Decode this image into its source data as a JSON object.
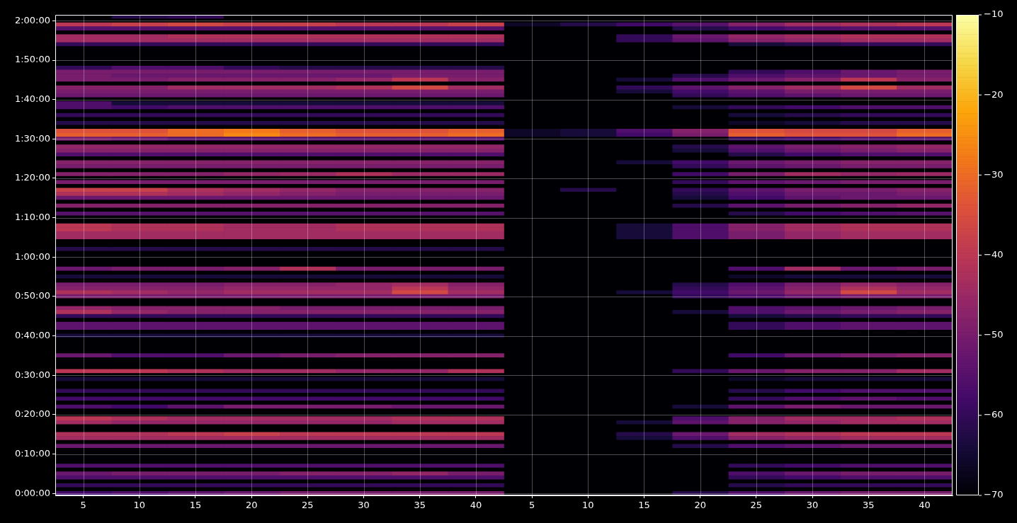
{
  "chart_data": {
    "type": "heatmap",
    "categories": [
      "5",
      "10",
      "15",
      "20",
      "25",
      "30",
      "35",
      "40",
      "5",
      "10",
      "15",
      "20",
      "25",
      "30",
      "35",
      "40"
    ],
    "clim": [
      -70,
      -10
    ],
    "grid": true,
    "cticks": [
      {
        "value": -70,
        "label": "−70"
      },
      {
        "value": -60,
        "label": "−60"
      },
      {
        "value": -50,
        "label": "−50"
      },
      {
        "value": -40,
        "label": "−40"
      },
      {
        "value": -30,
        "label": "−30"
      },
      {
        "value": -20,
        "label": "−20"
      },
      {
        "value": -10,
        "label": "−10"
      }
    ],
    "y_categories": [
      null,
      "2:00:00",
      null,
      null,
      null,
      null,
      null,
      null,
      null,
      null,
      null,
      "1:50:00",
      null,
      null,
      null,
      null,
      null,
      null,
      null,
      null,
      null,
      "1:40:00",
      null,
      null,
      null,
      null,
      null,
      null,
      null,
      null,
      null,
      "1:30:00",
      null,
      null,
      null,
      null,
      null,
      null,
      null,
      null,
      null,
      "1:20:00",
      null,
      null,
      null,
      null,
      null,
      null,
      null,
      null,
      null,
      "1:10:00",
      null,
      null,
      null,
      null,
      null,
      null,
      null,
      null,
      null,
      "1:00:00",
      null,
      null,
      null,
      null,
      null,
      null,
      null,
      null,
      null,
      "0:50:00",
      null,
      null,
      null,
      null,
      null,
      null,
      null,
      null,
      null,
      "0:40:00",
      null,
      null,
      null,
      null,
      null,
      null,
      null,
      null,
      null,
      "0:30:00",
      null,
      null,
      null,
      null,
      null,
      null,
      null,
      null,
      null,
      "0:20:00",
      null,
      null,
      null,
      null,
      null,
      null,
      null,
      null,
      null,
      "0:10:00",
      null,
      null,
      null,
      null,
      null,
      null,
      null,
      null,
      null,
      "0:00:00"
    ],
    "cells": [
      [
        -70,
        -62,
        -60,
        -70,
        -70,
        -70,
        -70,
        -70,
        -70,
        -70,
        -70,
        -70,
        -70,
        -70,
        -70,
        -70
      ],
      [
        -70,
        -70,
        -70,
        -70,
        -70,
        -70,
        -70,
        -70,
        -70,
        -70,
        -70,
        -70,
        -70,
        -70,
        -70,
        -70
      ],
      [
        -40,
        -38,
        -36,
        -38,
        -38,
        -40,
        -40,
        -38,
        -66,
        -62,
        -58,
        -55,
        -48,
        -44,
        -42,
        -40
      ],
      [
        -55,
        -55,
        -55,
        -55,
        -55,
        -55,
        -55,
        -55,
        -70,
        -70,
        -70,
        -62,
        -58,
        -56,
        -55,
        -55
      ],
      [
        -70,
        -70,
        -70,
        -70,
        -70,
        -70,
        -70,
        -70,
        -70,
        -70,
        -70,
        -70,
        -70,
        -70,
        -70,
        -70
      ],
      [
        -44,
        -44,
        -42,
        -42,
        -42,
        -42,
        -42,
        -42,
        -70,
        -70,
        -60,
        -52,
        -46,
        -44,
        -42,
        -42
      ],
      [
        -44,
        -44,
        -44,
        -44,
        -44,
        -44,
        -44,
        -44,
        -70,
        -70,
        -60,
        -54,
        -48,
        -46,
        -44,
        -44
      ],
      [
        -60,
        -60,
        -60,
        -60,
        -60,
        -60,
        -60,
        -60,
        -70,
        -70,
        -70,
        -70,
        -64,
        -62,
        -60,
        -60
      ],
      [
        -70,
        -70,
        -70,
        -70,
        -70,
        -70,
        -70,
        -70,
        -70,
        -70,
        -70,
        -70,
        -70,
        -70,
        -70,
        -70
      ],
      [
        -70,
        -70,
        -70,
        -70,
        -70,
        -70,
        -70,
        -70,
        -70,
        -70,
        -70,
        -70,
        -70,
        -70,
        -70,
        -70
      ],
      [
        -70,
        -70,
        -70,
        -70,
        -70,
        -70,
        -70,
        -70,
        -70,
        -70,
        -70,
        -70,
        -70,
        -70,
        -70,
        -70
      ],
      [
        -70,
        -70,
        -70,
        -70,
        -70,
        -70,
        -70,
        -70,
        -70,
        -70,
        -70,
        -70,
        -70,
        -70,
        -70,
        -70
      ],
      [
        -70,
        -70,
        -70,
        -70,
        -70,
        -70,
        -70,
        -70,
        -70,
        -70,
        -70,
        -70,
        -70,
        -70,
        -70,
        -70
      ],
      [
        -60,
        -56,
        -56,
        -60,
        -62,
        -62,
        -62,
        -62,
        -70,
        -70,
        -70,
        -70,
        -70,
        -70,
        -70,
        -70
      ],
      [
        -50,
        -50,
        -50,
        -50,
        -50,
        -50,
        -50,
        -50,
        -70,
        -70,
        -70,
        -70,
        -60,
        -56,
        -52,
        -50
      ],
      [
        -50,
        -52,
        -52,
        -52,
        -52,
        -52,
        -50,
        -50,
        -70,
        -70,
        -70,
        -62,
        -56,
        -54,
        -52,
        -50
      ],
      [
        -50,
        -50,
        -48,
        -48,
        -48,
        -46,
        -40,
        -48,
        -70,
        -70,
        -64,
        -56,
        -52,
        -48,
        -40,
        -48
      ],
      [
        -70,
        -70,
        -70,
        -70,
        -70,
        -70,
        -70,
        -70,
        -70,
        -70,
        -70,
        -70,
        -70,
        -70,
        -70,
        -70
      ],
      [
        -48,
        -48,
        -44,
        -44,
        -44,
        -42,
        -36,
        -44,
        -70,
        -70,
        -60,
        -54,
        -48,
        -44,
        -36,
        -44
      ],
      [
        -50,
        -50,
        -50,
        -50,
        -50,
        -50,
        -50,
        -50,
        -70,
        -70,
        -64,
        -58,
        -54,
        -50,
        -50,
        -50
      ],
      [
        -52,
        -52,
        -52,
        -52,
        -52,
        -52,
        -52,
        -52,
        -70,
        -70,
        -70,
        -60,
        -56,
        -54,
        -52,
        -52
      ],
      [
        -70,
        -70,
        -70,
        -70,
        -70,
        -70,
        -70,
        -70,
        -70,
        -70,
        -70,
        -70,
        -70,
        -70,
        -70,
        -70
      ],
      [
        -56,
        -64,
        -64,
        -64,
        -64,
        -64,
        -64,
        -64,
        -70,
        -70,
        -70,
        -70,
        -70,
        -70,
        -70,
        -70
      ],
      [
        -56,
        -58,
        -56,
        -56,
        -56,
        -56,
        -56,
        -56,
        -70,
        -70,
        -70,
        -64,
        -60,
        -58,
        -56,
        -56
      ],
      [
        -70,
        -70,
        -70,
        -70,
        -70,
        -70,
        -70,
        -70,
        -70,
        -70,
        -70,
        -70,
        -70,
        -70,
        -70,
        -70
      ],
      [
        -60,
        -60,
        -60,
        -60,
        -60,
        -60,
        -60,
        -60,
        -70,
        -70,
        -70,
        -70,
        -64,
        -62,
        -60,
        -60
      ],
      [
        -70,
        -70,
        -70,
        -70,
        -70,
        -70,
        -70,
        -70,
        -70,
        -70,
        -70,
        -70,
        -70,
        -70,
        -70,
        -70
      ],
      [
        -62,
        -62,
        -62,
        -62,
        -62,
        -62,
        -62,
        -62,
        -70,
        -70,
        -70,
        -70,
        -66,
        -64,
        -62,
        -62
      ],
      [
        -70,
        -70,
        -70,
        -70,
        -70,
        -70,
        -70,
        -70,
        -70,
        -70,
        -70,
        -70,
        -70,
        -70,
        -70,
        -70
      ],
      [
        -34,
        -34,
        -30,
        -28,
        -32,
        -34,
        -34,
        -32,
        -66,
        -64,
        -56,
        -48,
        -34,
        -36,
        -36,
        -32
      ],
      [
        -32,
        -32,
        -30,
        -26,
        -30,
        -32,
        -32,
        -30,
        -66,
        -64,
        -58,
        -50,
        -32,
        -34,
        -34,
        -30
      ],
      [
        -50,
        -52,
        -55,
        -55,
        -55,
        -55,
        -55,
        -55,
        -70,
        -70,
        -70,
        -70,
        -60,
        -58,
        -56,
        -55
      ],
      [
        -70,
        -70,
        -70,
        -70,
        -70,
        -70,
        -70,
        -70,
        -70,
        -70,
        -70,
        -70,
        -70,
        -70,
        -70,
        -70
      ],
      [
        -46,
        -46,
        -46,
        -46,
        -46,
        -46,
        -46,
        -46,
        -70,
        -70,
        -70,
        -62,
        -54,
        -50,
        -48,
        -46
      ],
      [
        -48,
        -48,
        -48,
        -48,
        -48,
        -48,
        -48,
        -48,
        -70,
        -70,
        -70,
        -64,
        -56,
        -52,
        -50,
        -48
      ],
      [
        -56,
        -56,
        -56,
        -56,
        -56,
        -56,
        -56,
        -56,
        -70,
        -70,
        -70,
        -70,
        -62,
        -58,
        -56,
        -56
      ],
      [
        -70,
        -70,
        -70,
        -70,
        -70,
        -70,
        -70,
        -70,
        -70,
        -70,
        -70,
        -70,
        -70,
        -70,
        -70,
        -70
      ],
      [
        -48,
        -48,
        -48,
        -48,
        -48,
        -48,
        -48,
        -48,
        -70,
        -70,
        -64,
        -58,
        -52,
        -50,
        -48,
        -48
      ],
      [
        -50,
        -50,
        -50,
        -50,
        -50,
        -50,
        -50,
        -50,
        -70,
        -70,
        -70,
        -60,
        -54,
        -52,
        -50,
        -50
      ],
      [
        -70,
        -70,
        -70,
        -70,
        -70,
        -70,
        -70,
        -70,
        -70,
        -70,
        -70,
        -70,
        -70,
        -70,
        -70,
        -70
      ],
      [
        -48,
        -48,
        -48,
        -46,
        -45,
        -42,
        -45,
        -45,
        -70,
        -70,
        -70,
        -58,
        -50,
        -44,
        -46,
        -45
      ],
      [
        -70,
        -70,
        -70,
        -70,
        -70,
        -70,
        -70,
        -70,
        -70,
        -70,
        -70,
        -70,
        -70,
        -70,
        -70,
        -70
      ],
      [
        -50,
        -50,
        -50,
        -50,
        -50,
        -50,
        -50,
        -50,
        -70,
        -70,
        -70,
        -60,
        -54,
        -52,
        -50,
        -50
      ],
      [
        -70,
        -70,
        -70,
        -70,
        -70,
        -70,
        -70,
        -70,
        -70,
        -70,
        -70,
        -70,
        -70,
        -70,
        -70,
        -70
      ],
      [
        -38,
        -38,
        -42,
        -44,
        -46,
        -48,
        -48,
        -48,
        -70,
        -62,
        -70,
        -60,
        -54,
        -50,
        -50,
        -48
      ],
      [
        -42,
        -42,
        -44,
        -46,
        -48,
        -50,
        -50,
        -50,
        -70,
        -70,
        -70,
        -62,
        -56,
        -52,
        -52,
        -50
      ],
      [
        -52,
        -52,
        -52,
        -52,
        -52,
        -52,
        -52,
        -52,
        -70,
        -70,
        -70,
        -64,
        -58,
        -54,
        -52,
        -52
      ],
      [
        -70,
        -70,
        -70,
        -70,
        -70,
        -70,
        -70,
        -70,
        -70,
        -70,
        -70,
        -70,
        -70,
        -70,
        -70,
        -70
      ],
      [
        -48,
        -48,
        -48,
        -48,
        -48,
        -48,
        -48,
        -48,
        -70,
        -70,
        -70,
        -62,
        -54,
        -50,
        -48,
        -46
      ],
      [
        -70,
        -70,
        -70,
        -70,
        -70,
        -70,
        -70,
        -70,
        -70,
        -70,
        -70,
        -70,
        -70,
        -70,
        -70,
        -70
      ],
      [
        -55,
        -55,
        -55,
        -55,
        -55,
        -55,
        -55,
        -55,
        -70,
        -70,
        -70,
        -70,
        -62,
        -58,
        -56,
        -55
      ],
      [
        -70,
        -70,
        -70,
        -70,
        -70,
        -70,
        -70,
        -70,
        -70,
        -70,
        -70,
        -70,
        -70,
        -70,
        -70,
        -70
      ],
      [
        -70,
        -70,
        -70,
        -70,
        -70,
        -70,
        -70,
        -70,
        -70,
        -70,
        -70,
        -70,
        -70,
        -70,
        -70,
        -70
      ],
      [
        -40,
        -42,
        -42,
        -44,
        -44,
        -42,
        -42,
        -42,
        -70,
        -70,
        -64,
        -56,
        -48,
        -44,
        -42,
        -42
      ],
      [
        -40,
        -42,
        -42,
        -44,
        -44,
        -42,
        -42,
        -42,
        -70,
        -70,
        -64,
        -56,
        -48,
        -44,
        -42,
        -42
      ],
      [
        -44,
        -44,
        -44,
        -44,
        -44,
        -44,
        -44,
        -44,
        -70,
        -70,
        -64,
        -56,
        -50,
        -46,
        -44,
        -44
      ],
      [
        -44,
        -44,
        -44,
        -44,
        -44,
        -44,
        -44,
        -44,
        -70,
        -70,
        -64,
        -56,
        -50,
        -46,
        -44,
        -44
      ],
      [
        -70,
        -70,
        -70,
        -70,
        -70,
        -70,
        -70,
        -70,
        -70,
        -70,
        -70,
        -70,
        -70,
        -70,
        -70,
        -70
      ],
      [
        -70,
        -70,
        -70,
        -70,
        -70,
        -70,
        -70,
        -70,
        -70,
        -70,
        -70,
        -70,
        -70,
        -70,
        -70,
        -70
      ],
      [
        -62,
        -62,
        -62,
        -62,
        -62,
        -62,
        -62,
        -62,
        -70,
        -70,
        -70,
        -70,
        -70,
        -70,
        -70,
        -70
      ],
      [
        -70,
        -70,
        -70,
        -70,
        -70,
        -70,
        -70,
        -70,
        -70,
        -70,
        -70,
        -70,
        -70,
        -70,
        -70,
        -70
      ],
      [
        -70,
        -70,
        -70,
        -70,
        -70,
        -70,
        -70,
        -70,
        -70,
        -70,
        -70,
        -70,
        -70,
        -70,
        -70,
        -70
      ],
      [
        -70,
        -70,
        -70,
        -70,
        -70,
        -70,
        -70,
        -70,
        -70,
        -70,
        -70,
        -70,
        -70,
        -70,
        -70,
        -70
      ],
      [
        -70,
        -70,
        -70,
        -70,
        -70,
        -70,
        -70,
        -70,
        -70,
        -70,
        -70,
        -70,
        -70,
        -70,
        -70,
        -70
      ],
      [
        -52,
        -50,
        -50,
        -48,
        -42,
        -50,
        -50,
        -50,
        -70,
        -70,
        -70,
        -70,
        -56,
        -44,
        -52,
        -50
      ],
      [
        -70,
        -70,
        -70,
        -70,
        -70,
        -70,
        -70,
        -70,
        -70,
        -70,
        -70,
        -70,
        -70,
        -70,
        -70,
        -70
      ],
      [
        -64,
        -64,
        -64,
        -64,
        -64,
        -64,
        -64,
        -64,
        -70,
        -70,
        -70,
        -70,
        -66,
        -64,
        -64,
        -64
      ],
      [
        -70,
        -70,
        -70,
        -70,
        -70,
        -70,
        -70,
        -70,
        -70,
        -70,
        -70,
        -70,
        -70,
        -70,
        -70,
        -70
      ],
      [
        -50,
        -50,
        -50,
        -48,
        -48,
        -46,
        -44,
        -48,
        -70,
        -70,
        -70,
        -62,
        -56,
        -50,
        -46,
        -48
      ],
      [
        -48,
        -48,
        -48,
        -46,
        -46,
        -46,
        -40,
        -46,
        -70,
        -70,
        -70,
        -60,
        -54,
        -48,
        -42,
        -46
      ],
      [
        -42,
        -44,
        -46,
        -44,
        -44,
        -44,
        -36,
        -44,
        -70,
        -70,
        -64,
        -58,
        -52,
        -46,
        -36,
        -44
      ],
      [
        -50,
        -50,
        -50,
        -50,
        -50,
        -50,
        -50,
        -50,
        -70,
        -70,
        -70,
        -60,
        -56,
        -52,
        -50,
        -50
      ],
      [
        -70,
        -70,
        -70,
        -70,
        -70,
        -70,
        -70,
        -70,
        -70,
        -70,
        -70,
        -70,
        -70,
        -70,
        -70,
        -70
      ],
      [
        -70,
        -70,
        -70,
        -70,
        -70,
        -70,
        -70,
        -70,
        -70,
        -70,
        -70,
        -70,
        -70,
        -70,
        -70,
        -70
      ],
      [
        -46,
        -48,
        -48,
        -48,
        -50,
        -50,
        -50,
        -50,
        -70,
        -70,
        -70,
        -70,
        -56,
        -54,
        -52,
        -50
      ],
      [
        -42,
        -46,
        -48,
        -48,
        -48,
        -48,
        -48,
        -48,
        -70,
        -70,
        -70,
        -64,
        -56,
        -52,
        -50,
        -48
      ],
      [
        -60,
        -60,
        -60,
        -60,
        -60,
        -60,
        -60,
        -60,
        -70,
        -70,
        -70,
        -70,
        -64,
        -62,
        -60,
        -60
      ],
      [
        -70,
        -70,
        -70,
        -70,
        -70,
        -70,
        -70,
        -70,
        -70,
        -70,
        -70,
        -70,
        -70,
        -70,
        -70,
        -70
      ],
      [
        -54,
        -54,
        -54,
        -54,
        -54,
        -54,
        -54,
        -54,
        -70,
        -70,
        -70,
        -70,
        -60,
        -56,
        -54,
        -54
      ],
      [
        -54,
        -54,
        -54,
        -54,
        -54,
        -54,
        -54,
        -54,
        -70,
        -70,
        -70,
        -70,
        -60,
        -56,
        -54,
        -54
      ],
      [
        -70,
        -70,
        -70,
        -70,
        -70,
        -70,
        -70,
        -70,
        -70,
        -70,
        -70,
        -70,
        -70,
        -70,
        -70,
        -70
      ],
      [
        -64,
        -64,
        -64,
        -64,
        -64,
        -64,
        -64,
        -64,
        -70,
        -70,
        -70,
        -70,
        -70,
        -70,
        -70,
        -70
      ],
      [
        -70,
        -70,
        -70,
        -70,
        -70,
        -70,
        -70,
        -70,
        -70,
        -70,
        -70,
        -70,
        -70,
        -70,
        -70,
        -70
      ],
      [
        -70,
        -70,
        -70,
        -70,
        -70,
        -70,
        -70,
        -70,
        -70,
        -70,
        -70,
        -70,
        -70,
        -70,
        -70,
        -70
      ],
      [
        -70,
        -70,
        -70,
        -70,
        -70,
        -70,
        -70,
        -70,
        -70,
        -70,
        -70,
        -70,
        -70,
        -70,
        -70,
        -70
      ],
      [
        -70,
        -70,
        -70,
        -70,
        -70,
        -70,
        -70,
        -70,
        -70,
        -70,
        -70,
        -70,
        -70,
        -70,
        -70,
        -70
      ],
      [
        -52,
        -56,
        -56,
        -52,
        -50,
        -48,
        -48,
        -48,
        -70,
        -70,
        -70,
        -70,
        -58,
        -52,
        -50,
        -48
      ],
      [
        -70,
        -70,
        -70,
        -70,
        -70,
        -70,
        -70,
        -70,
        -70,
        -70,
        -70,
        -70,
        -70,
        -70,
        -70,
        -70
      ],
      [
        -70,
        -70,
        -70,
        -70,
        -70,
        -70,
        -70,
        -70,
        -70,
        -70,
        -70,
        -70,
        -70,
        -70,
        -70,
        -70
      ],
      [
        -70,
        -70,
        -70,
        -70,
        -70,
        -70,
        -70,
        -70,
        -70,
        -70,
        -70,
        -70,
        -70,
        -70,
        -70,
        -70
      ],
      [
        -40,
        -40,
        -42,
        -44,
        -44,
        -46,
        -46,
        -42,
        -70,
        -70,
        -70,
        -60,
        -52,
        -48,
        -48,
        -44
      ],
      [
        -70,
        -70,
        -70,
        -70,
        -70,
        -70,
        -70,
        -70,
        -70,
        -70,
        -70,
        -70,
        -70,
        -70,
        -70,
        -70
      ],
      [
        -64,
        -64,
        -64,
        -64,
        -64,
        -64,
        -64,
        -64,
        -70,
        -70,
        -70,
        -70,
        -66,
        -64,
        -64,
        -64
      ],
      [
        -70,
        -70,
        -70,
        -70,
        -70,
        -70,
        -70,
        -70,
        -70,
        -70,
        -70,
        -70,
        -70,
        -70,
        -70,
        -70
      ],
      [
        -70,
        -70,
        -70,
        -70,
        -70,
        -70,
        -70,
        -70,
        -70,
        -70,
        -70,
        -70,
        -70,
        -70,
        -70,
        -70
      ],
      [
        -60,
        -60,
        -60,
        -60,
        -60,
        -60,
        -60,
        -60,
        -70,
        -70,
        -70,
        -70,
        -62,
        -58,
        -56,
        -56
      ],
      [
        -70,
        -70,
        -70,
        -70,
        -70,
        -70,
        -70,
        -70,
        -70,
        -70,
        -70,
        -70,
        -70,
        -70,
        -70,
        -70
      ],
      [
        -58,
        -58,
        -58,
        -58,
        -58,
        -58,
        -58,
        -58,
        -70,
        -70,
        -70,
        -70,
        -60,
        -56,
        -54,
        -56
      ],
      [
        -70,
        -70,
        -70,
        -70,
        -70,
        -70,
        -70,
        -70,
        -70,
        -70,
        -70,
        -70,
        -70,
        -70,
        -70,
        -70
      ],
      [
        -56,
        -58,
        -54,
        -50,
        -50,
        -50,
        -52,
        -52,
        -70,
        -70,
        -70,
        -64,
        -54,
        -50,
        -52,
        -52
      ],
      [
        -70,
        -70,
        -70,
        -70,
        -70,
        -70,
        -70,
        -70,
        -70,
        -70,
        -70,
        -70,
        -70,
        -70,
        -70,
        -70
      ],
      [
        -70,
        -70,
        -70,
        -70,
        -70,
        -70,
        -70,
        -70,
        -70,
        -70,
        -70,
        -70,
        -70,
        -70,
        -70,
        -70
      ],
      [
        -40,
        -42,
        -44,
        -44,
        -44,
        -44,
        -42,
        -42,
        -70,
        -70,
        -70,
        -56,
        -48,
        -44,
        -44,
        -42
      ],
      [
        -44,
        -46,
        -46,
        -46,
        -46,
        -46,
        -44,
        -44,
        -70,
        -70,
        -64,
        -54,
        -48,
        -46,
        -44,
        -44
      ],
      [
        -70,
        -70,
        -70,
        -70,
        -70,
        -70,
        -70,
        -70,
        -70,
        -70,
        -70,
        -70,
        -70,
        -70,
        -70,
        -70
      ],
      [
        -70,
        -70,
        -70,
        -70,
        -70,
        -70,
        -70,
        -70,
        -70,
        -70,
        -70,
        -70,
        -70,
        -70,
        -70,
        -70
      ],
      [
        -42,
        -42,
        -40,
        -38,
        -40,
        -40,
        -40,
        -40,
        -70,
        -70,
        -62,
        -52,
        -44,
        -42,
        -40,
        -40
      ],
      [
        -44,
        -44,
        -44,
        -44,
        -44,
        -44,
        -44,
        -44,
        -70,
        -70,
        -64,
        -56,
        -48,
        -46,
        -44,
        -44
      ],
      [
        -70,
        -70,
        -70,
        -70,
        -70,
        -70,
        -70,
        -70,
        -70,
        -70,
        -70,
        -70,
        -70,
        -70,
        -70,
        -70
      ],
      [
        -52,
        -52,
        -52,
        -52,
        -52,
        -52,
        -52,
        -52,
        -70,
        -70,
        -70,
        -62,
        -56,
        -54,
        -52,
        -52
      ],
      [
        -70,
        -70,
        -70,
        -70,
        -70,
        -70,
        -70,
        -70,
        -70,
        -70,
        -70,
        -70,
        -70,
        -70,
        -70,
        -70
      ],
      [
        -70,
        -70,
        -70,
        -70,
        -70,
        -70,
        -70,
        -70,
        -70,
        -70,
        -70,
        -70,
        -70,
        -70,
        -70,
        -70
      ],
      [
        -70,
        -70,
        -70,
        -70,
        -70,
        -70,
        -70,
        -70,
        -70,
        -70,
        -70,
        -70,
        -70,
        -70,
        -70,
        -70
      ],
      [
        -70,
        -70,
        -70,
        -70,
        -70,
        -70,
        -70,
        -70,
        -70,
        -70,
        -70,
        -70,
        -70,
        -70,
        -70,
        -70
      ],
      [
        -56,
        -56,
        -56,
        -56,
        -56,
        -56,
        -56,
        -56,
        -70,
        -70,
        -70,
        -70,
        -60,
        -58,
        -56,
        -56
      ],
      [
        -70,
        -70,
        -70,
        -70,
        -70,
        -70,
        -70,
        -70,
        -70,
        -70,
        -70,
        -70,
        -70,
        -70,
        -70,
        -70
      ],
      [
        -52,
        -50,
        -50,
        -50,
        -48,
        -48,
        -46,
        -50,
        -70,
        -70,
        -70,
        -70,
        -56,
        -52,
        -50,
        -50
      ],
      [
        -56,
        -56,
        -56,
        -56,
        -56,
        -56,
        -56,
        -56,
        -70,
        -70,
        -70,
        -70,
        -60,
        -58,
        -56,
        -56
      ],
      [
        -70,
        -70,
        -70,
        -70,
        -70,
        -70,
        -70,
        -70,
        -70,
        -70,
        -70,
        -70,
        -70,
        -70,
        -70,
        -70
      ],
      [
        -60,
        -60,
        -60,
        -60,
        -60,
        -60,
        -60,
        -60,
        -70,
        -70,
        -70,
        -70,
        -62,
        -60,
        -60,
        -60
      ],
      [
        -70,
        -70,
        -70,
        -70,
        -70,
        -70,
        -70,
        -70,
        -70,
        -70,
        -70,
        -70,
        -70,
        -70,
        -70,
        -70
      ],
      [
        -58,
        -56,
        -54,
        -52,
        -50,
        -50,
        -50,
        -50,
        -70,
        -70,
        -70,
        -62,
        -56,
        -52,
        -50,
        -50
      ]
    ]
  }
}
